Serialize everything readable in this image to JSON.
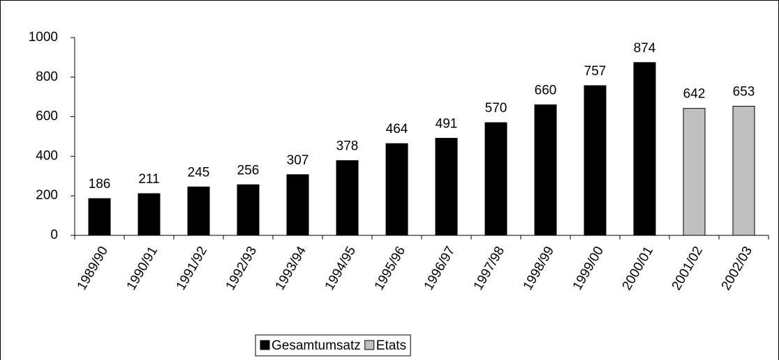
{
  "chart_data": {
    "type": "bar",
    "categories": [
      "1989/90",
      "1990/91",
      "1991/92",
      "1992/93",
      "1993/94",
      "1994/95",
      "1995/96",
      "1996/97",
      "1997/98",
      "1998/99",
      "1999/00",
      "2000/01",
      "2001/02",
      "2002/03"
    ],
    "series": [
      {
        "name": "Gesamtumsatz",
        "color": "#000000",
        "values": [
          186,
          211,
          245,
          256,
          307,
          378,
          464,
          491,
          570,
          660,
          757,
          874,
          null,
          null
        ]
      },
      {
        "name": "Etats",
        "color": "#c0c0c0",
        "values": [
          null,
          null,
          null,
          null,
          null,
          null,
          null,
          null,
          null,
          null,
          null,
          null,
          642,
          653
        ]
      }
    ],
    "ylim": [
      0,
      1000
    ],
    "yticks": [
      0,
      200,
      400,
      600,
      800,
      1000
    ],
    "grid": false,
    "legend": "bottom"
  }
}
